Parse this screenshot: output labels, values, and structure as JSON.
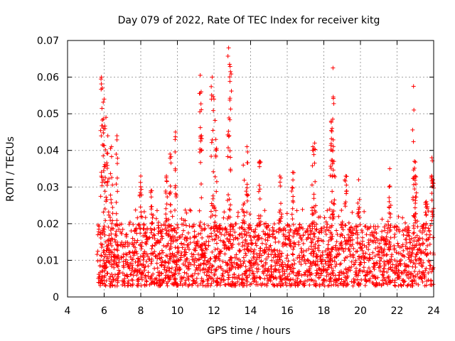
{
  "chart_data": {
    "type": "scatter",
    "title": "Day 079 of 2022, Rate Of TEC Index for receiver kitg",
    "xlabel": "GPS time / hours",
    "ylabel": "ROTI / TECUs",
    "xlim": [
      4,
      24
    ],
    "ylim": [
      0,
      0.07
    ],
    "xticks": [
      4,
      6,
      8,
      10,
      12,
      14,
      16,
      18,
      20,
      22,
      24
    ],
    "yticks": [
      0,
      0.01,
      0.02,
      0.03,
      0.04,
      0.05,
      0.06,
      0.07
    ],
    "xtick_labels": [
      "4",
      "6",
      "8",
      "10",
      "12",
      "14",
      "16",
      "18",
      "20",
      "22",
      "24"
    ],
    "ytick_labels": [
      "0",
      "0.01",
      "0.02",
      "0.03",
      "0.04",
      "0.05",
      "0.06",
      "0.07"
    ],
    "grid": true,
    "marker": "+",
    "color": "#ff0000",
    "series": [
      {
        "name": "ROTI",
        "data_start_hour": 5.6,
        "data_end_hour": 24.0,
        "typical_range": [
          0.003,
          0.02
        ],
        "peaks": [
          {
            "x": 5.85,
            "y": 0.06
          },
          {
            "x": 5.9,
            "y": 0.057
          },
          {
            "x": 6.0,
            "y": 0.054
          },
          {
            "x": 6.1,
            "y": 0.049
          },
          {
            "x": 6.2,
            "y": 0.044
          },
          {
            "x": 6.4,
            "y": 0.041
          },
          {
            "x": 6.7,
            "y": 0.044
          },
          {
            "x": 8.0,
            "y": 0.033
          },
          {
            "x": 8.6,
            "y": 0.029
          },
          {
            "x": 9.4,
            "y": 0.033
          },
          {
            "x": 9.6,
            "y": 0.039
          },
          {
            "x": 9.9,
            "y": 0.045
          },
          {
            "x": 11.25,
            "y": 0.0605
          },
          {
            "x": 11.3,
            "y": 0.056
          },
          {
            "x": 11.9,
            "y": 0.06
          },
          {
            "x": 12.0,
            "y": 0.054
          },
          {
            "x": 12.1,
            "y": 0.043
          },
          {
            "x": 12.8,
            "y": 0.068
          },
          {
            "x": 12.85,
            "y": 0.0635
          },
          {
            "x": 12.9,
            "y": 0.0615
          },
          {
            "x": 13.6,
            "y": 0.036
          },
          {
            "x": 13.8,
            "y": 0.041
          },
          {
            "x": 14.5,
            "y": 0.037
          },
          {
            "x": 15.6,
            "y": 0.033
          },
          {
            "x": 16.3,
            "y": 0.034
          },
          {
            "x": 17.4,
            "y": 0.041
          },
          {
            "x": 17.5,
            "y": 0.042
          },
          {
            "x": 18.4,
            "y": 0.048
          },
          {
            "x": 18.45,
            "y": 0.046
          },
          {
            "x": 18.5,
            "y": 0.0625
          },
          {
            "x": 18.55,
            "y": 0.037
          },
          {
            "x": 19.2,
            "y": 0.033
          },
          {
            "x": 19.9,
            "y": 0.032
          },
          {
            "x": 21.6,
            "y": 0.035
          },
          {
            "x": 22.9,
            "y": 0.0575
          },
          {
            "x": 22.95,
            "y": 0.037
          },
          {
            "x": 23.0,
            "y": 0.033
          },
          {
            "x": 23.6,
            "y": 0.026
          },
          {
            "x": 23.9,
            "y": 0.038
          },
          {
            "x": 23.95,
            "y": 0.032
          }
        ]
      }
    ]
  }
}
